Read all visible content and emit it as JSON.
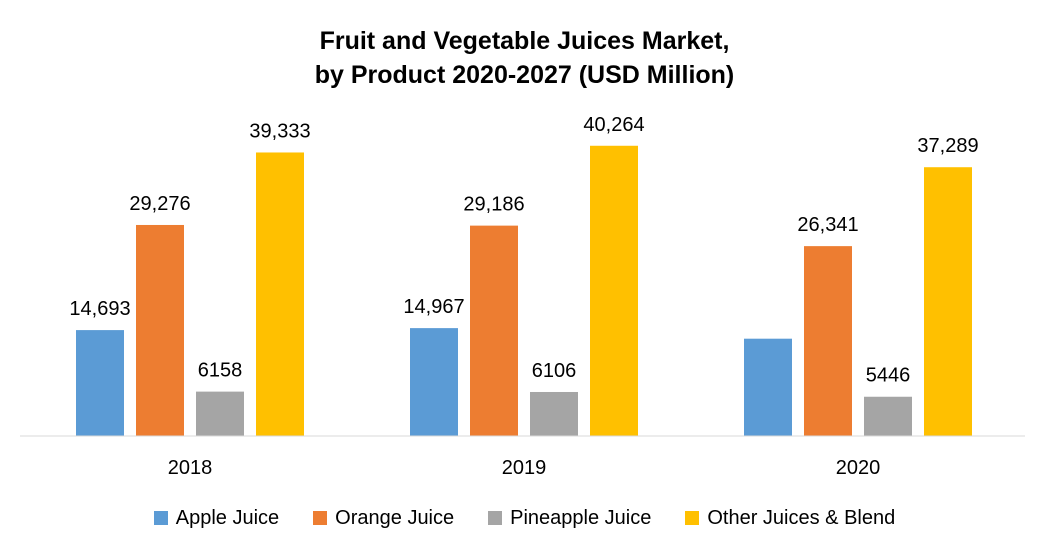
{
  "chart_data": {
    "type": "bar",
    "title_lines": [
      "Fruit and Vegetable Juices Market,",
      "by Product 2020-2027 (USD Million)"
    ],
    "xlabel": "",
    "ylabel": "",
    "categories": [
      "2018",
      "2019",
      "2020"
    ],
    "series": [
      {
        "name": "Apple Juice",
        "color": "#5B9BD5",
        "values": [
          14693,
          14967,
          13500
        ],
        "labels": [
          "14,693",
          "14,967",
          ""
        ]
      },
      {
        "name": "Orange Juice",
        "color": "#ED7D31",
        "values": [
          29276,
          29186,
          26341
        ],
        "labels": [
          "29,276",
          "29,186",
          "26,341"
        ]
      },
      {
        "name": "Pineapple Juice",
        "color": "#A5A5A5",
        "values": [
          6158,
          6106,
          5446
        ],
        "labels": [
          "6158",
          "6106",
          "5446"
        ]
      },
      {
        "name": "Other Juices & Blend",
        "color": "#FFC000",
        "values": [
          39333,
          40264,
          37289
        ],
        "labels": [
          "39,333",
          "40,264",
          "37,289"
        ]
      }
    ],
    "ylim": [
      0,
      45000
    ],
    "grid": false,
    "legend_position": "bottom"
  }
}
